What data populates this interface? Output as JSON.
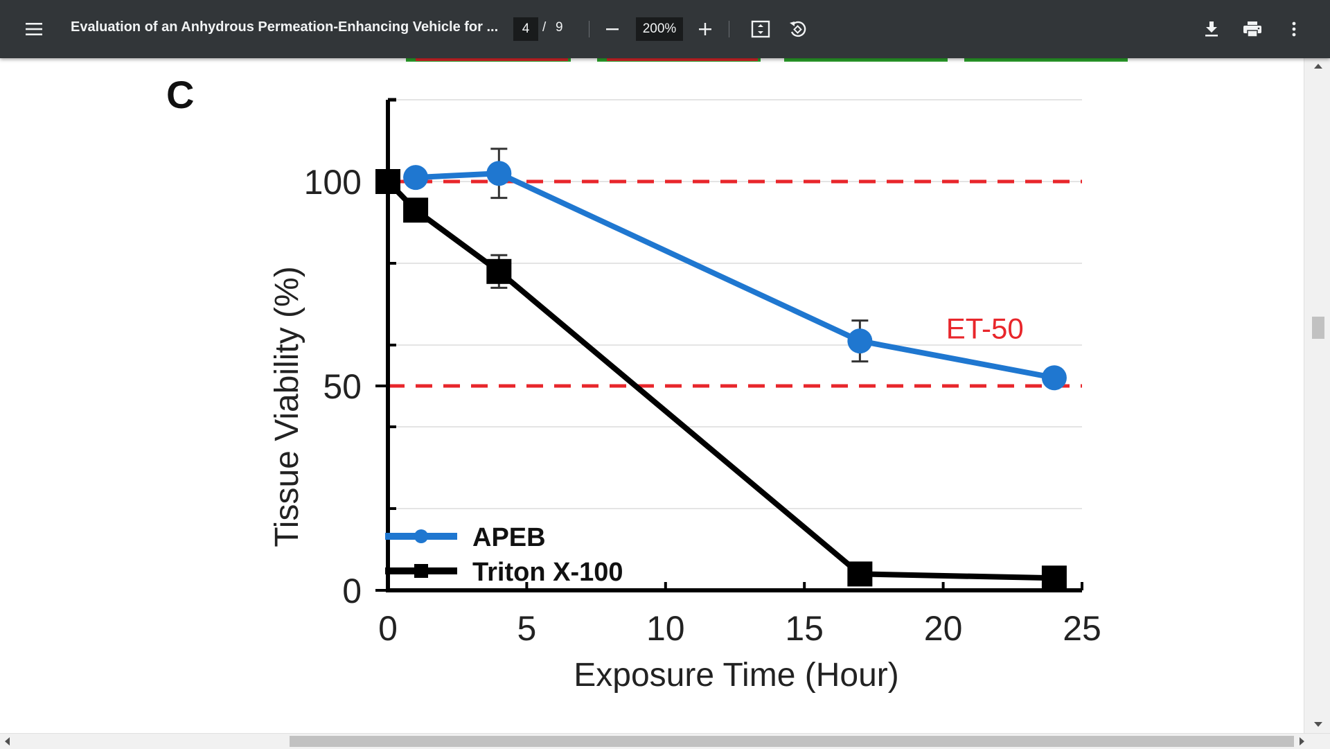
{
  "toolbar": {
    "title": "Evaluation of an Anhydrous Permeation-Enhancing Vehicle for ...",
    "page_current": "4",
    "page_separator": "/",
    "page_total": "9",
    "zoom": "200%",
    "icons": [
      "menu-icon",
      "zoom-out-icon",
      "zoom-in-icon",
      "fit-page-icon",
      "rotate-icon",
      "download-icon",
      "print-icon",
      "more-icon"
    ],
    "background_color": "#323639",
    "text_color": "#f1f3f4"
  },
  "figure": {
    "panel_label": "C"
  },
  "chart_data": {
    "type": "line",
    "title": "",
    "xlabel": "Exposure Time (Hour)",
    "ylabel": "Tissue Viability (%)",
    "xlim": [
      0,
      25
    ],
    "ylim": [
      0,
      100
    ],
    "xticks": [
      "0",
      "5",
      "10",
      "15",
      "20",
      "25"
    ],
    "yticks": [
      "0",
      "50",
      "100"
    ],
    "grid": true,
    "legend": "bottom-left",
    "series": [
      {
        "name": "APEB",
        "color": "#1f77d0",
        "marker": "circle",
        "x": [
          1,
          4,
          17,
          24
        ],
        "y": [
          101,
          102,
          61,
          52
        ],
        "error": [
          0,
          6,
          5,
          0
        ]
      },
      {
        "name": "Triton X-100",
        "color": "#000000",
        "marker": "square",
        "x": [
          0,
          1,
          4,
          17,
          24
        ],
        "y": [
          100,
          93,
          78,
          4,
          3
        ],
        "error": [
          0,
          0,
          4,
          0,
          0
        ]
      }
    ],
    "reference_lines": [
      {
        "y": 100,
        "color": "#e8262b",
        "style": "dashed"
      },
      {
        "y": 50,
        "color": "#e8262b",
        "style": "dashed"
      }
    ],
    "annotations": [
      {
        "text": "ET-50",
        "x": 21.5,
        "y": 63,
        "color": "#e8262b"
      }
    ]
  }
}
